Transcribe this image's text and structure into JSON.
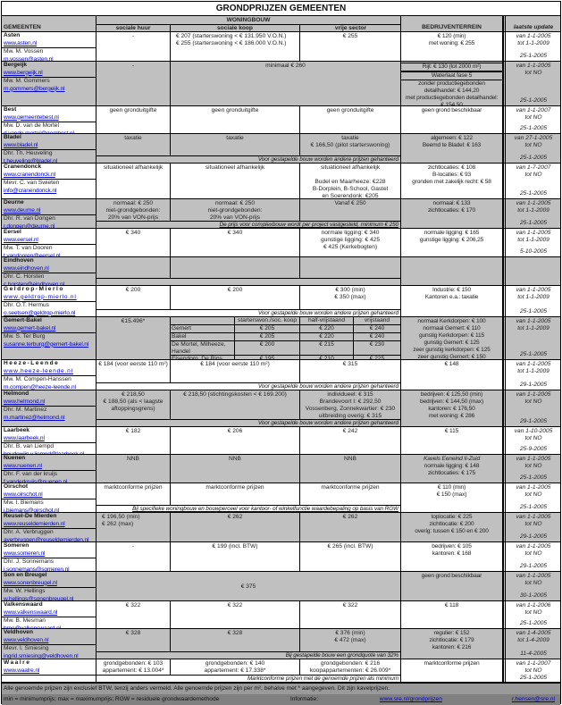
{
  "title": "GRONDPRIJZEN GEMEENTEN",
  "headers": {
    "group": "WONINGBOUW",
    "gemeenten": "GEMEENTEN",
    "huur": "sociale huur",
    "koop": "sociale koop",
    "vrij": "vrije sector",
    "bedrijf": "BEDRIJVENTERREIN",
    "update": "laatste update"
  },
  "colors": {
    "gray": "#c0c0c0",
    "link": "#0000cc",
    "footer": "#808080"
  },
  "rows": [
    {
      "name": "Asten",
      "url": "www.asten.nl",
      "contact": "Mw. M. Vossen",
      "email": "m.vossen@asten.nl",
      "gray": false,
      "huur": [
        "-"
      ],
      "koop": [
        "€ 207 (starterswoning < € 131.950 V.O.N.)",
        "€ 255 (starterswoning < € 186.000 V.O.N.)"
      ],
      "vrij": [
        "€ 255"
      ],
      "bedrijf": [
        "€ 120 (min)",
        "met woning: € 255"
      ],
      "update": {
        "from": "van 1-1-2005",
        "to": "tot 1-1-2009",
        "date": "25-1-2005"
      }
    },
    {
      "name": "Bergeijk",
      "url": "www.bergeijk.nl",
      "contact": "Mw. M. Gommers",
      "email": "m.gommers@bergeijk.nl",
      "gray": true,
      "huur": [
        "-"
      ],
      "merged": "minimaal € 260",
      "bedrijf_boxed": [
        "Rijt: € 130 (tot 2000 m²)",
        "Waterlaat fase 5"
      ],
      "bedrijf": [
        "zonder productiegebonden",
        "detailhandel: € 144,20",
        "met productiegebonden detailhandel:",
        "€ 154,50"
      ],
      "update": {
        "from": "van 1-1-2005",
        "to": "tot NO",
        "date": "25-1-2005"
      }
    },
    {
      "name": "Best",
      "url": "www.gemeentebest.nl",
      "contact": "Mw. D. van de Mortel",
      "email": "d.vande.mortel@gembest.nl",
      "gray": false,
      "huur": [
        "geen gronduitgifte"
      ],
      "koop": [
        "geen gronduitgifte"
      ],
      "vrij": [
        "geen gronduitgifte"
      ],
      "bedrijf": [
        "geen grond beschikbaar"
      ],
      "update": {
        "from": "van 1-1-2007",
        "to": "tot NO",
        "date": "25-1-2005"
      }
    },
    {
      "name": "Bladel",
      "url": "www.bladel.nl",
      "contact": "Dhr. Th. Heuveling",
      "email": "t.heuveling@bladel.nl",
      "gray": true,
      "huur": [
        "taxatie"
      ],
      "koop": [
        "taxatie"
      ],
      "vrij": [
        "taxatie",
        "€ 166,50 (pilot starterswoning)"
      ],
      "bedrijf": [
        "algemeen: € 122",
        "Beemd te Bladel: € 163"
      ],
      "note": "Voor gestapelde bouw worden andere prijzen gehanteerd",
      "update": {
        "from": "van 27-1-2005",
        "to": "tot NO",
        "date": "25-1-2005"
      }
    },
    {
      "name": "Cranendonck",
      "url": "www.cranendonck.nl",
      "contact": "Mevr. C. van Swieten",
      "email": "info@cranendonck.nl",
      "gray": false,
      "huur": [
        "situationeel afhankelijk"
      ],
      "koop": [
        "situationeel afhankelijk"
      ],
      "vrij": [
        "situationeel afhankelijk",
        "",
        "Budel en Maarheeze: €228",
        "B-Dorplein, B-School, Gastel",
        "en Soerendonk: €205"
      ],
      "bedrijf": [
        "zichtlocaties: € 108",
        "B-locaties: € 93",
        "gronden met zakelijk recht: € 58"
      ],
      "update": {
        "from": "van 1-7-2007",
        "to": "tot NO",
        "date": "25-1-2005"
      }
    },
    {
      "name": "Deurne",
      "url": "www.deurne.nl",
      "contact": "Dhr. R. van Dongen",
      "email": "r.dongen@deurne.nl",
      "gray": true,
      "huur": [
        "normaal: € 250",
        "niet-grondgebonden:",
        "20% van VON-prijs"
      ],
      "koop": [
        "normaal: € 250",
        "niet-grondgebonden:",
        "20% van VON-prijs"
      ],
      "vrij": [
        "Vanaf € 250"
      ],
      "bedrijf": [
        "normaal: € 133",
        "zichtlocaties: € 170"
      ],
      "note": "De prijs voor complexbouw wordt per project vastgesteld, minimum € 250",
      "note_ul": true,
      "update": {
        "from": "van 1-1-2005",
        "to": "tot 1-1-2009",
        "date": "25-1-2005"
      }
    },
    {
      "name": "Eersel",
      "url": "www.eersel.nl",
      "contact": "Mw. T. van Dooren",
      "email": "t.vandooren@eersel.nl",
      "gray": false,
      "huur": [
        "€ 340"
      ],
      "koop": [
        "€ 340"
      ],
      "vrij": [
        "normale ligging: € 340",
        "gunstige ligging: € 425",
        "€ 425 (Kerkebogten)"
      ],
      "bedrijf": [
        "normale ligging: € 165",
        "gunstige ligging: € 206,25"
      ],
      "update": {
        "from": "van 1-1-2005",
        "to": "tot 1-1-2009",
        "date": "5-10-2005"
      }
    },
    {
      "name": "Eindhoven",
      "url": "www.eindhoven.nl",
      "contact": "Dhr. C. Horsten",
      "email": "c.horsten@eindhoven.nl",
      "gray": true,
      "huur": [],
      "koop": [],
      "vrij": [],
      "bedrijf": [],
      "note": "",
      "update": {
        "from": "",
        "to": "",
        "date": ""
      }
    },
    {
      "name": "Geldrop-Mierlo",
      "spaced": true,
      "url": "www.geldrop-mierlo.nl",
      "contact": "Dhr. O.T. Hermus",
      "email": "o.seetsen@geldrop-mierlo.nl",
      "gray": false,
      "huur": [
        "€ 200"
      ],
      "koop": [
        "€ 200"
      ],
      "vrij": [
        "€ 300 (min)",
        "€ 350 (max)"
      ],
      "bedrijf": [
        "Industrie: € 150",
        "Kantoren e.a.: taxatie"
      ],
      "note": "Voor gestapelde bouw worden andere prijzen gehanteerd",
      "update": {
        "from": "van 1-1-2005",
        "to": "tot 1-1-2009",
        "date": "25-1-2005"
      }
    },
    {
      "name": "Gemert-Bakel",
      "url": "www.gemert-bakel.nl",
      "contact": "Mw. S. Ter Burg",
      "email": "susanne.terburg@gemert-bakel.nl",
      "gray": true,
      "huur": [
        "€15.496*"
      ],
      "subtable": {
        "headers": [
          "",
          "starterswon./soc. koop",
          "half-vrijstaand",
          "vrijstaand"
        ],
        "rows": [
          [
            "Gemert",
            "€ 205",
            "€ 220",
            "€ 240"
          ],
          [
            "Bakel",
            "€ 205",
            "€ 220",
            "€ 240"
          ],
          [
            "De Mortel, Milheeze, Handel",
            "€ 200",
            "€ 215",
            "€ 230"
          ],
          [
            "Elsendorp, De Rips",
            "€ 195",
            "€ 210",
            "€ 225"
          ]
        ]
      },
      "bedrijf": [
        "normaal Kerkdorpen: € 100",
        "normaal Gemert: € 110",
        "gunstig Kerkdorpen: € 115",
        "gunstig Gemert: € 125",
        "zeer gunstig kerkdorpen: € 125",
        "zeer gunstig Gemert: € 150"
      ],
      "update": {
        "from": "van 1-1-2005",
        "to": "tot 1-1-2009",
        "date": "25-1-2005"
      }
    },
    {
      "name": "Heeze-Leende",
      "spaced": true,
      "url": "www.heeze-leende.nl",
      "contact": "Mw. M. Compen-Hanssen",
      "email": "m.compen@heeze-leende.nl",
      "gray": false,
      "huur": [
        "€ 184 (voor eerste 110 m²)"
      ],
      "koop": [
        "€ 184 (voor eerste 110 m²)"
      ],
      "vrij": [
        "€ 315"
      ],
      "bedrijf": [
        "€ 148"
      ],
      "note": "Voor gestapelde bouw worden andere prijzen gehanteerd",
      "update": {
        "from": "van 1-1-2005",
        "to": "tot 1-1-2009",
        "date": "29-1-2005"
      }
    },
    {
      "name": "Helmond",
      "url": "www.helmond.nl",
      "contact": "Dhr. M. Martinez",
      "email": "m.martinez@helmond.nl",
      "gray": true,
      "huur": [
        "€ 218,50",
        "€ 188,50 (als < laagste",
        "aftoppingsgrens)"
      ],
      "koop": [
        "€ 218,50 (stichtingskosten < € 169.200)"
      ],
      "vrij": [
        "individueel: € 315",
        "Brandevoort I: € 292,50",
        "Vossenberg, Zonnekwartier: € 230",
        "uitbreiding overig: € 315"
      ],
      "bedrijf": [
        "bedrijven: € 125,50 (min)",
        "bedrijven: € 144,50 (max)",
        "kantoren: € 176,50",
        "met woning: € 286"
      ],
      "note": "Voor gestapelde bouw worden andere prijzen gehanteerd",
      "update": {
        "from": "van 1-1-2005",
        "to": "tot NO",
        "date": "29-1-2005"
      }
    },
    {
      "name": "Laarbeek",
      "url": "www.laarbeek.nl",
      "contact": "Dhr. B. van Liempd",
      "email": "boudewijn.v.liempd@laarbeek.nl",
      "gray": false,
      "huur": [
        "€ 182"
      ],
      "koop": [
        "€ 206"
      ],
      "vrij": [
        "€ 242"
      ],
      "bedrijf": [
        "€ 115"
      ],
      "update": {
        "from": "van 1-10-2005",
        "to": "tot NO",
        "date": "25-9-2005"
      }
    },
    {
      "name": "Nuenen",
      "url": "www.nuenen.nl",
      "contact": "Dhr. F. van der kruijs",
      "email": "f.vanderkruijs@nuenen.nl",
      "gray": true,
      "huur": [
        "NNB"
      ],
      "koop": [
        "NNB"
      ],
      "vrij": [
        "NNB"
      ],
      "bedrijf_italic": "Kavels Eeneind II-Zuid",
      "bedrijf": [
        "normale ligging: € 148",
        "zichtlocaties: € 175"
      ],
      "update": {
        "from": "van 1-1-2005",
        "to": "tot NO",
        "date": "25-1-2005"
      }
    },
    {
      "name": "Oirschot",
      "url": "www.oirschot.nl",
      "contact": "Mw. I. Biemans",
      "email": "i.biemans@oirschot.nl",
      "gray": false,
      "huur": [
        "marktconforme prijzen"
      ],
      "koop": [
        "marktconforme prijzen"
      ],
      "vrij": [
        "marktconforme prijzen"
      ],
      "bedrijf": [
        "€ 110 (min)",
        "€ 150 (max)"
      ],
      "note": "Bij specifieke woningbouw en bouwperceel voor kantoor- of winkelfunctie waardebepaling op basis van RGW",
      "note_ul": true,
      "update": {
        "from": "van 1-1-2005",
        "to": "tot NO",
        "date": "25-1-2005"
      }
    },
    {
      "name": "Reusel-De Mierden",
      "url": "www.reuseldemierden.nl",
      "contact": "Dhr. A. Verbruggen",
      "email": "averbruggen@reuseldemierden.nl",
      "gray": true,
      "huur": [
        "€ 196,50 (min)",
        "€ 262 (max)"
      ],
      "koop": [
        "€ 262"
      ],
      "vrij": [
        "€ 262"
      ],
      "bedrijf": [
        "toplocatie: € 225",
        "zichtlocatie: € 200",
        "overig: tussen € 150 en € 200"
      ],
      "update": {
        "from": "van 1-1-2005",
        "to": "tot NO",
        "date": "29-1-2005"
      }
    },
    {
      "name": "Someren",
      "url": "www.someren.nl",
      "contact": "Dhr. J. Sonnemans",
      "email": "j.sonnemans@someren.nl",
      "gray": false,
      "huur": [
        "-"
      ],
      "koop": [
        "€ 199 (incl. BTW)"
      ],
      "vrij": [
        "€ 265 (incl. BTW)"
      ],
      "bedrijf": [
        "bedrijven: € 105",
        "kantoren: € 168"
      ],
      "update": {
        "from": "van 1-1-2005",
        "to": "tot NO",
        "date": "29-1-2005"
      }
    },
    {
      "name": "Son en Breugel",
      "url": "www.sonenbreugel.nl",
      "contact": "Mw. W. Hellings",
      "email": "w.hellings@sonenbreugel.nl",
      "gray": true,
      "merged_all": "€ 375",
      "bedrijf": [
        "geen grond beschikbaar"
      ],
      "update": {
        "from": "van 1-1-2005",
        "to": "tot NO",
        "date": "30-1-2005"
      }
    },
    {
      "name": "Valkenswaard",
      "url": "www.valkenswaard.nl",
      "contact": "Mw. B. Mesman",
      "email": "bme@valkenswaard.nl",
      "gray": false,
      "huur": [
        "€ 322"
      ],
      "koop": [
        "€ 322"
      ],
      "vrij": [
        "€ 322"
      ],
      "bedrijf": [
        "€ 118"
      ],
      "update": {
        "from": "van 1-1-2006",
        "to": "tot NO",
        "date": "25-1-2005"
      }
    },
    {
      "name": "Veldhoven",
      "url": "www.veldhoven.nl",
      "contact": "Mevr. I. Smiesing",
      "email": "ingrid.smiesing@veldhoven.nl",
      "gray": true,
      "huur": [
        "€ 328"
      ],
      "koop": [
        "€ 328"
      ],
      "vrij": [
        "€ 376 (min)",
        "€ 472 (max)"
      ],
      "bedrijf": [
        "regulier: € 152",
        "zichtlocatie: € 179",
        "kantoren: € 216"
      ],
      "note": "Bij gestapelde bouw een grondquote van 32%",
      "update": {
        "from": "van 1-4-2005",
        "to": "tot 1-4-2009",
        "date": "11-4-2005"
      }
    },
    {
      "name": "Waalre",
      "spaced": true,
      "url": "www.waalre.nl",
      "contact": "",
      "email": "",
      "gray": false,
      "huur": [
        "grondgebonden: € 103",
        "appartement: € 13.004*"
      ],
      "koop": [
        "grondgebonden: € 140",
        "appartement: € 17.338*"
      ],
      "vrij": [
        "grondgebonden: € 216",
        "koopappartementen: € 26.009*",
        "huurappartementen: € 21.676*"
      ],
      "bedrijf": [
        "marktconforme prijzen"
      ],
      "note": "Marktconforme prijzen met de genoemde prijzen als minimum",
      "update": {
        "from": "van 1-1-2007",
        "to": "tot NO",
        "date": "25-1-2005"
      }
    }
  ],
  "footer": {
    "line1": "Alle genoemde prijzen zijn exclusief BTW, tenzij anders vermeld. Alle genoemde prijzen zijn per m², behalve met * aangegeven. Dit zijn kavelprijzen.",
    "line2": "min = minimumprijs; max = maximumprijs; RGW = residuele grondwaardemethode",
    "info_label": "Informatie:",
    "info_link": "www.sre.nl/grondprijzen",
    "info_email": "r.hensen@sre.nl"
  }
}
